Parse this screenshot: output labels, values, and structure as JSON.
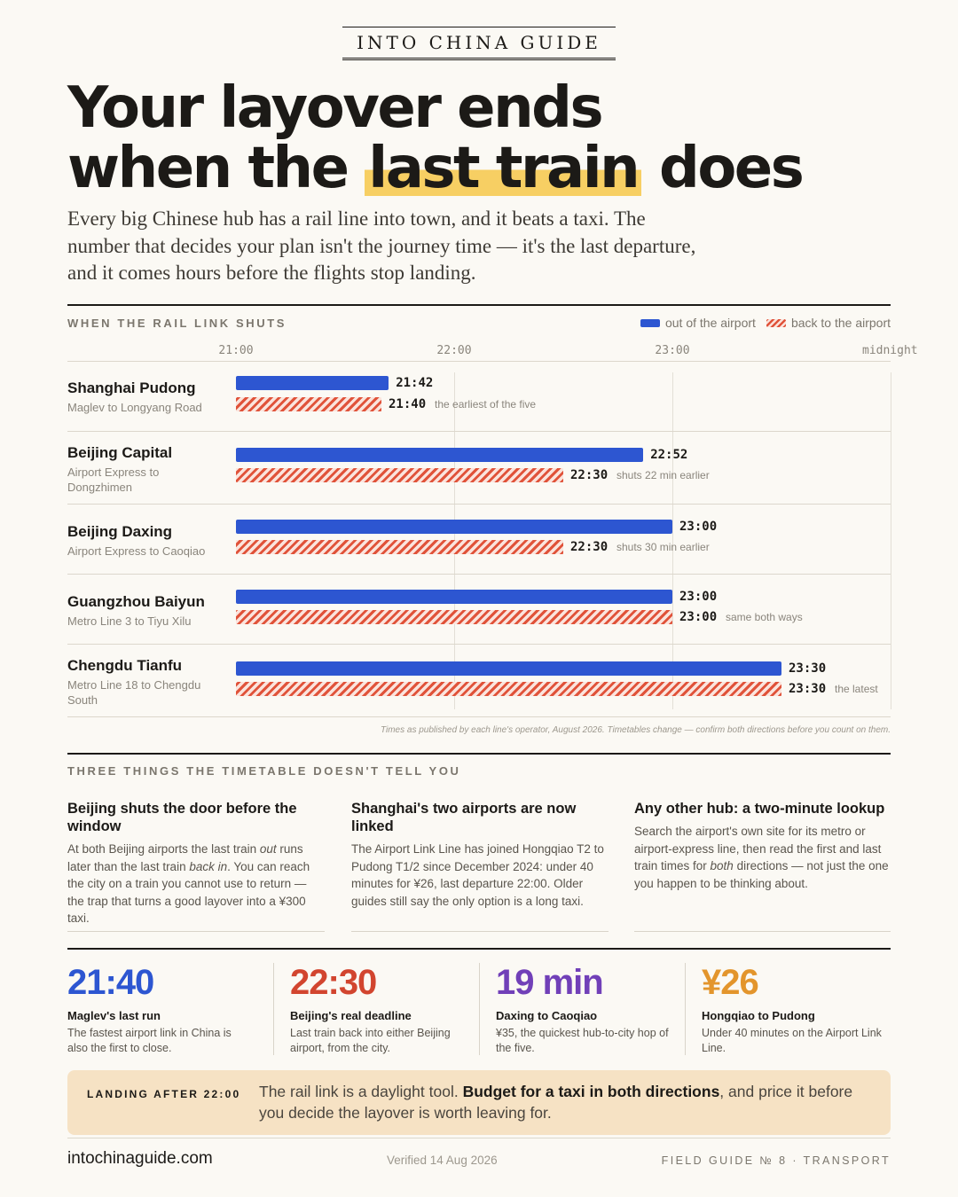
{
  "brand": "INTO CHINA GUIDE",
  "headline": {
    "line1": "Your layover ends",
    "line2_pre": "when the ",
    "line2_highlight": "last train",
    "line2_post": " does"
  },
  "lede": "Every big Chinese hub has a rail line into town, and it beats a taxi. The number that decides your plan isn't the journey time — it's the last departure, and it comes hours before the flights stop landing.",
  "chart_section_label": "WHEN THE RAIL LINK SHUTS",
  "legend": {
    "out_label": "out of the airport",
    "back_label": "back to the airport",
    "out_color": "#2d56d1",
    "back_color": "#e0533a"
  },
  "chart_data": {
    "type": "bar",
    "orientation": "horizontal",
    "x_unit": "time of day",
    "xlim": [
      "21:00",
      "24:00"
    ],
    "x_ticks": [
      "21:00",
      "22:00",
      "23:00",
      "midnight"
    ],
    "grid": true,
    "legend_position": "top-right",
    "series": [
      {
        "name": "out of the airport"
      },
      {
        "name": "back to the airport"
      }
    ],
    "rows": [
      {
        "name": "Shanghai Pudong",
        "sub": "Maglev to Longyang Road",
        "out": "21:42",
        "back": "21:40",
        "note": "the earliest of the five"
      },
      {
        "name": "Beijing Capital",
        "sub": "Airport Express to Dongzhimen",
        "out": "22:52",
        "back": "22:30",
        "note": "shuts 22 min earlier"
      },
      {
        "name": "Beijing Daxing",
        "sub": "Airport Express to Caoqiao",
        "out": "23:00",
        "back": "22:30",
        "note": "shuts 30 min earlier"
      },
      {
        "name": "Guangzhou Baiyun",
        "sub": "Metro Line 3 to Tiyu Xilu",
        "out": "23:00",
        "back": "23:00",
        "note": "same both ways"
      },
      {
        "name": "Chengdu Tianfu",
        "sub": "Metro Line 18 to Chengdu South",
        "out": "23:30",
        "back": "23:30",
        "note": "the latest"
      }
    ]
  },
  "chart_footnote": "Times as published by each line's operator, August 2026. Timetables change — confirm both directions before you count on them.",
  "tips_section_label": "THREE THINGS THE TIMETABLE DOESN'T TELL YOU",
  "tips": [
    {
      "title": "Beijing shuts the door before the window",
      "body_parts": [
        "At both Beijing airports the last train ",
        "out",
        " runs later than the last train ",
        "back in",
        ". You can reach the city on a train you cannot use to return — the trap that turns a good layover into a ¥300 taxi."
      ]
    },
    {
      "title": "Shanghai's two airports are now linked",
      "body_parts": [
        "The Airport Link Line has joined Hongqiao T2 to Pudong T1/2 since December 2024: under 40 minutes for ¥26, last departure 22:00. Older guides still say the only option is a long taxi."
      ]
    },
    {
      "title": "Any other hub: a two-minute lookup",
      "body_parts": [
        "Search the airport's own site for its metro or airport-express line, then read the first and last train times for ",
        "both",
        " directions — not just the one you happen to be thinking about."
      ]
    }
  ],
  "stats": [
    {
      "value": "21:40",
      "label": "Maglev's last run",
      "body": "The fastest airport link in China is also the first to close.",
      "color": "#2d56d1"
    },
    {
      "value": "22:30",
      "label": "Beijing's real deadline",
      "body": "Last train back into either Beijing airport, from the city.",
      "color": "#d2452f"
    },
    {
      "value": "19 min",
      "label": "Daxing to Caoqiao",
      "body": "¥35, the quickest hub-to-city hop of the five.",
      "color": "#7140b8"
    },
    {
      "value": "¥26",
      "label": "Hongqiao to Pudong",
      "body": "Under 40 minutes on the Airport Link Line.",
      "color": "#e3952c"
    }
  ],
  "callout": {
    "label": "LANDING AFTER 22:00",
    "text_pre": "The rail link is a daylight tool. ",
    "text_bold": "Budget for a taxi in both directions",
    "text_post": ", and price it before you decide the layover is worth leaving for."
  },
  "footer": {
    "site": "intochinaguide.com",
    "verified": "Verified 14 Aug 2026",
    "series": "FIELD GUIDE № 8 · TRANSPORT"
  }
}
